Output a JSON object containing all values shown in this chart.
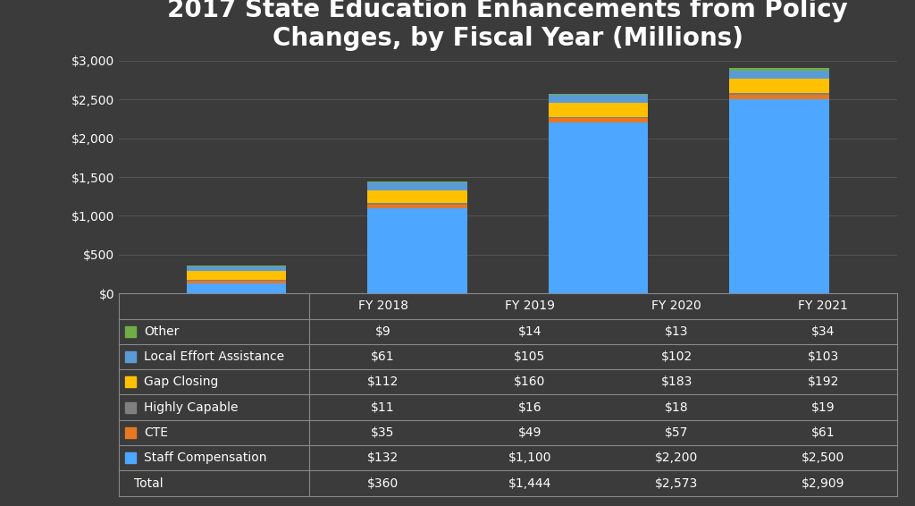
{
  "title": "2017 State Education Enhancements from Policy\nChanges, by Fiscal Year (Millions)",
  "categories": [
    "FY 2018",
    "FY 2019",
    "FY 2020",
    "FY 2021"
  ],
  "series": {
    "Staff Compensation": [
      132,
      1100,
      2200,
      2500
    ],
    "CTE": [
      35,
      49,
      57,
      61
    ],
    "Highly Capable": [
      11,
      16,
      18,
      19
    ],
    "Gap Closing": [
      112,
      160,
      183,
      192
    ],
    "Local Effort Assistance": [
      61,
      105,
      102,
      103
    ],
    "Other": [
      9,
      14,
      13,
      34
    ]
  },
  "series_order": [
    "Staff Compensation",
    "CTE",
    "Highly Capable",
    "Gap Closing",
    "Local Effort Assistance",
    "Other"
  ],
  "colors": {
    "Staff Compensation": "#4da6ff",
    "CTE": "#e87722",
    "Highly Capable": "#808080",
    "Gap Closing": "#ffc000",
    "Local Effort Assistance": "#5b9bd5",
    "Other": "#70ad47"
  },
  "table_rows": [
    "Other",
    "Local Effort Assistance",
    "Gap Closing",
    "Highly Capable",
    "CTE",
    "Staff Compensation",
    "Total"
  ],
  "table_data": {
    "Other": [
      "$9",
      "$14",
      "$13",
      "$34"
    ],
    "Local Effort Assistance": [
      "$61",
      "$105",
      "$102",
      "$103"
    ],
    "Gap Closing": [
      "$112",
      "$160",
      "$183",
      "$192"
    ],
    "Highly Capable": [
      "$11",
      "$16",
      "$18",
      "$19"
    ],
    "CTE": [
      "$35",
      "$49",
      "$57",
      "$61"
    ],
    "Staff Compensation": [
      "$132",
      "$1,100",
      "$2,200",
      "$2,500"
    ],
    "Total": [
      "$360",
      "$1,444",
      "$2,573",
      "$2,909"
    ]
  },
  "ylim": [
    0,
    3000
  ],
  "yticks": [
    0,
    500,
    1000,
    1500,
    2000,
    2500,
    3000
  ],
  "ytick_labels": [
    "$0",
    "$500",
    "$1,000",
    "$1,500",
    "$2,000",
    "$2,500",
    "$3,000"
  ],
  "background_color": "#3b3b3b",
  "plot_bg_color": "#3b3b3b",
  "text_color": "#ffffff",
  "grid_color": "#555555",
  "table_bg_color": "#3b3b3b",
  "table_line_color": "#888888",
  "title_fontsize": 20,
  "bar_width": 0.55
}
